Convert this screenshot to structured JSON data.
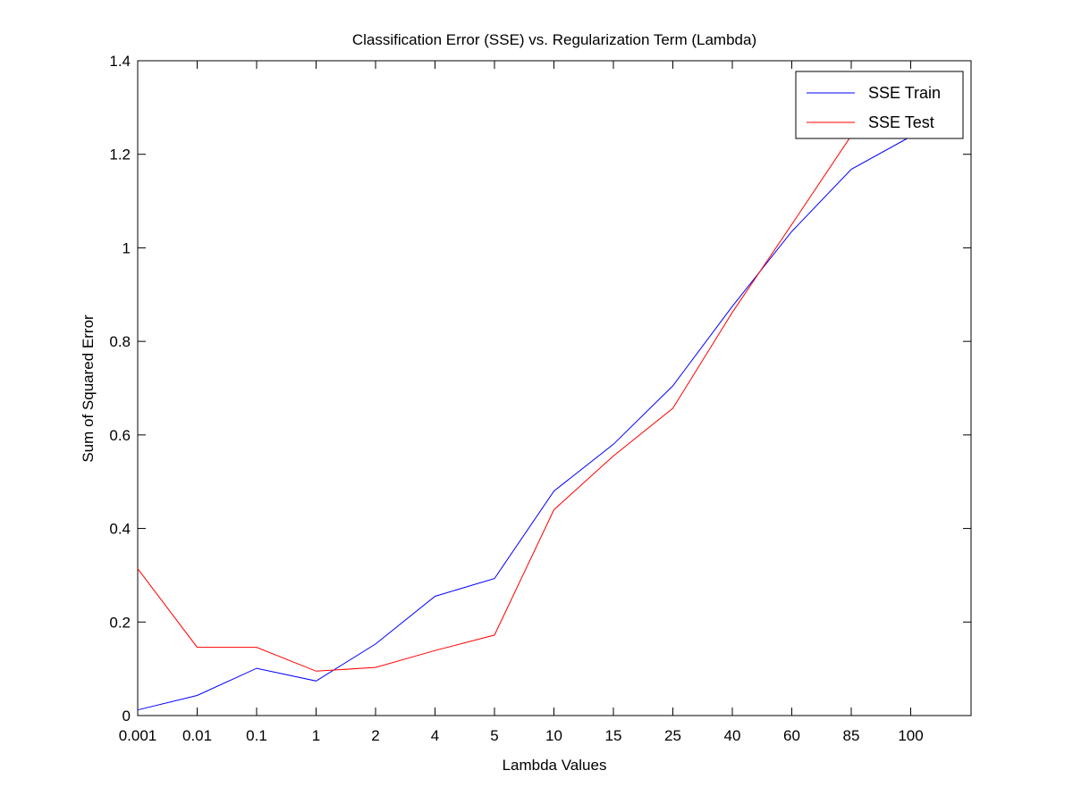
{
  "chart_data": {
    "type": "line",
    "title": "Classification Error (SSE) vs. Regularization Term (Lambda)",
    "xlabel": "Lambda Values",
    "ylabel": "Sum of Squared Error",
    "categories": [
      "0.001",
      "0.01",
      "0.1",
      "1",
      "2",
      "4",
      "5",
      "10",
      "15",
      "25",
      "40",
      "60",
      "85",
      "100"
    ],
    "ylim": [
      0,
      1.4
    ],
    "yticks": [
      "0",
      "0.2",
      "0.4",
      "0.6",
      "0.8",
      "1",
      "1.2",
      "1.4"
    ],
    "grid": false,
    "legend_position": "top-right",
    "series": [
      {
        "name": "SSE Train",
        "color": "#0000ff",
        "values": [
          0.012,
          0.043,
          0.101,
          0.074,
          0.153,
          0.255,
          0.293,
          0.48,
          0.58,
          0.705,
          0.875,
          1.035,
          1.168,
          1.238
        ]
      },
      {
        "name": "SSE Test",
        "color": "#ff0000",
        "values": [
          0.314,
          0.146,
          0.146,
          0.095,
          0.103,
          0.139,
          0.172,
          0.44,
          0.555,
          0.657,
          0.862,
          1.05,
          1.24,
          1.3
        ]
      }
    ]
  }
}
